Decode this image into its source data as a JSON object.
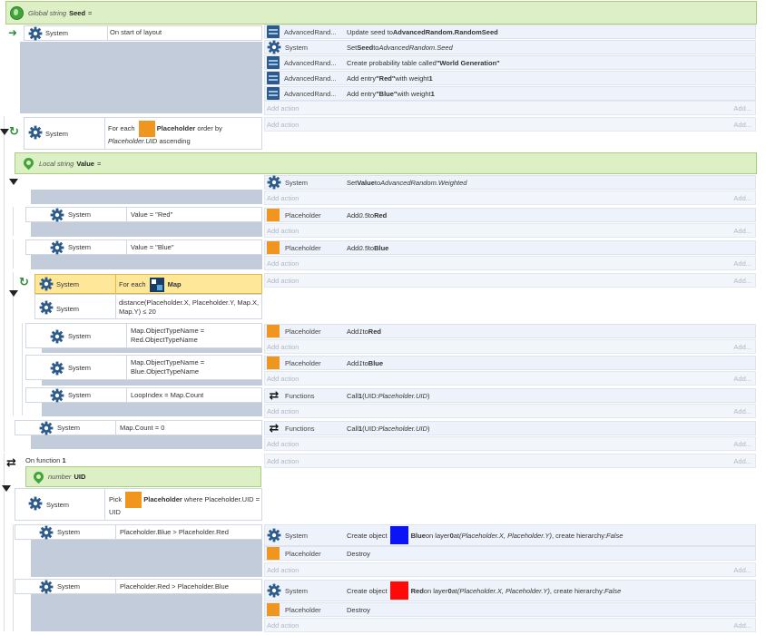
{
  "labels": {
    "system": "System",
    "add_action": "Add action",
    "add_action_right": "Add...",
    "placeholder": "Placeholder",
    "functions": "Functions"
  },
  "global_var": {
    "scope": "Global string",
    "name": "Seed",
    "eq": "="
  },
  "local_var": {
    "scope": "Local string",
    "name": "Value",
    "eq": "="
  },
  "param": {
    "type": "number",
    "name": "UID"
  },
  "events": {
    "start": {
      "condition": "On start of layout",
      "actions": [
        {
          "object": "AdvancedRand...",
          "pre": "Update seed to ",
          "bold": "AdvancedRandom.RandomSeed"
        },
        {
          "object": "System",
          "pre": "Set ",
          "bold": "Seed",
          "mid": " to ",
          "italic": "AdvancedRandom.Seed"
        },
        {
          "object": "AdvancedRand...",
          "pre": "Create probability table called ",
          "bold": "\"World Generation\""
        },
        {
          "object": "AdvancedRand...",
          "pre": "Add entry ",
          "bold": "\"Red\"",
          "mid": " with weight ",
          "bold2": "1"
        },
        {
          "object": "AdvancedRand...",
          "pre": "Add entry ",
          "bold": "\"Blue\"",
          "mid": " with weight ",
          "bold2": "1"
        }
      ]
    },
    "foreach_placeholder": {
      "pre": "For each",
      "object": "Placeholder",
      "mid": "order by",
      "italic": "Placeholder.UID",
      "post": "ascending"
    },
    "set_value": {
      "pre": "Set ",
      "bold": "Value",
      "mid": " to ",
      "italic": "AdvancedRandom.Weighted"
    },
    "value_red": {
      "condition": "Value = \"Red\"",
      "action_pre": "Add ",
      "action_italic": "0.5",
      "action_mid": " to ",
      "action_bold": "Red"
    },
    "value_blue": {
      "condition": "Value = \"Blue\"",
      "action_pre": "Add ",
      "action_italic": "0.5",
      "action_mid": " to ",
      "action_bold": "Blue"
    },
    "foreach_map": {
      "pre": "For each",
      "object": "Map",
      "distance": "distance(Placeholder.X, Placeholder.Y, Map.X, Map.Y) ≤ 20"
    },
    "map_red": {
      "condition": "Map.ObjectTypeName = Red.ObjectTypeName",
      "action_pre": "Add ",
      "action_italic": "1",
      "action_mid": " to ",
      "action_bold": "Red"
    },
    "map_blue": {
      "condition": "Map.ObjectTypeName = Blue.ObjectTypeName",
      "action_pre": "Add ",
      "action_italic": "1",
      "action_mid": " to ",
      "action_bold": "Blue"
    },
    "loopindex": {
      "condition": "LoopIndex = Map.Count",
      "action_pre": "Call ",
      "action_bold": "1",
      "action_mid": " (UID: ",
      "action_italic": "Placeholder.UID",
      "action_post": ")"
    },
    "mapcount": {
      "condition": "Map.Count = 0",
      "action_pre": "Call ",
      "action_bold": "1",
      "action_mid": " (UID: ",
      "action_italic": "Placeholder.UID",
      "action_post": ")"
    },
    "function": {
      "label": "On function",
      "number": "1"
    },
    "pick": {
      "pre": "Pick",
      "object": "Placeholder",
      "post": "where Placeholder.UID = UID"
    },
    "blue_gt": {
      "condition": "Placeholder.Blue > Placeholder.Red",
      "create_pre": "Create object",
      "create_obj": "Blue",
      "create_mid": " on layer ",
      "layer": "0",
      "at": " at ",
      "coords": "(Placeholder.X, Placeholder.Y)",
      "hier": ", create hierarchy: ",
      "hier_val": "False",
      "destroy": "Destroy"
    },
    "red_gt": {
      "condition": "Placeholder.Red > Placeholder.Blue",
      "create_pre": "Create object",
      "create_obj": "Red",
      "create_mid": " on layer ",
      "layer": "0",
      "at": " at ",
      "coords": "(Placeholder.X, Placeholder.Y)",
      "hier": ", create hierarchy: ",
      "hier_val": "False",
      "destroy": "Destroy"
    }
  },
  "colors": {
    "orange": "#f0961e",
    "blue": "#0a14f5",
    "red": "#ff0a0a",
    "var_green": "#dcefc5",
    "selected": "#ffe79a"
  }
}
